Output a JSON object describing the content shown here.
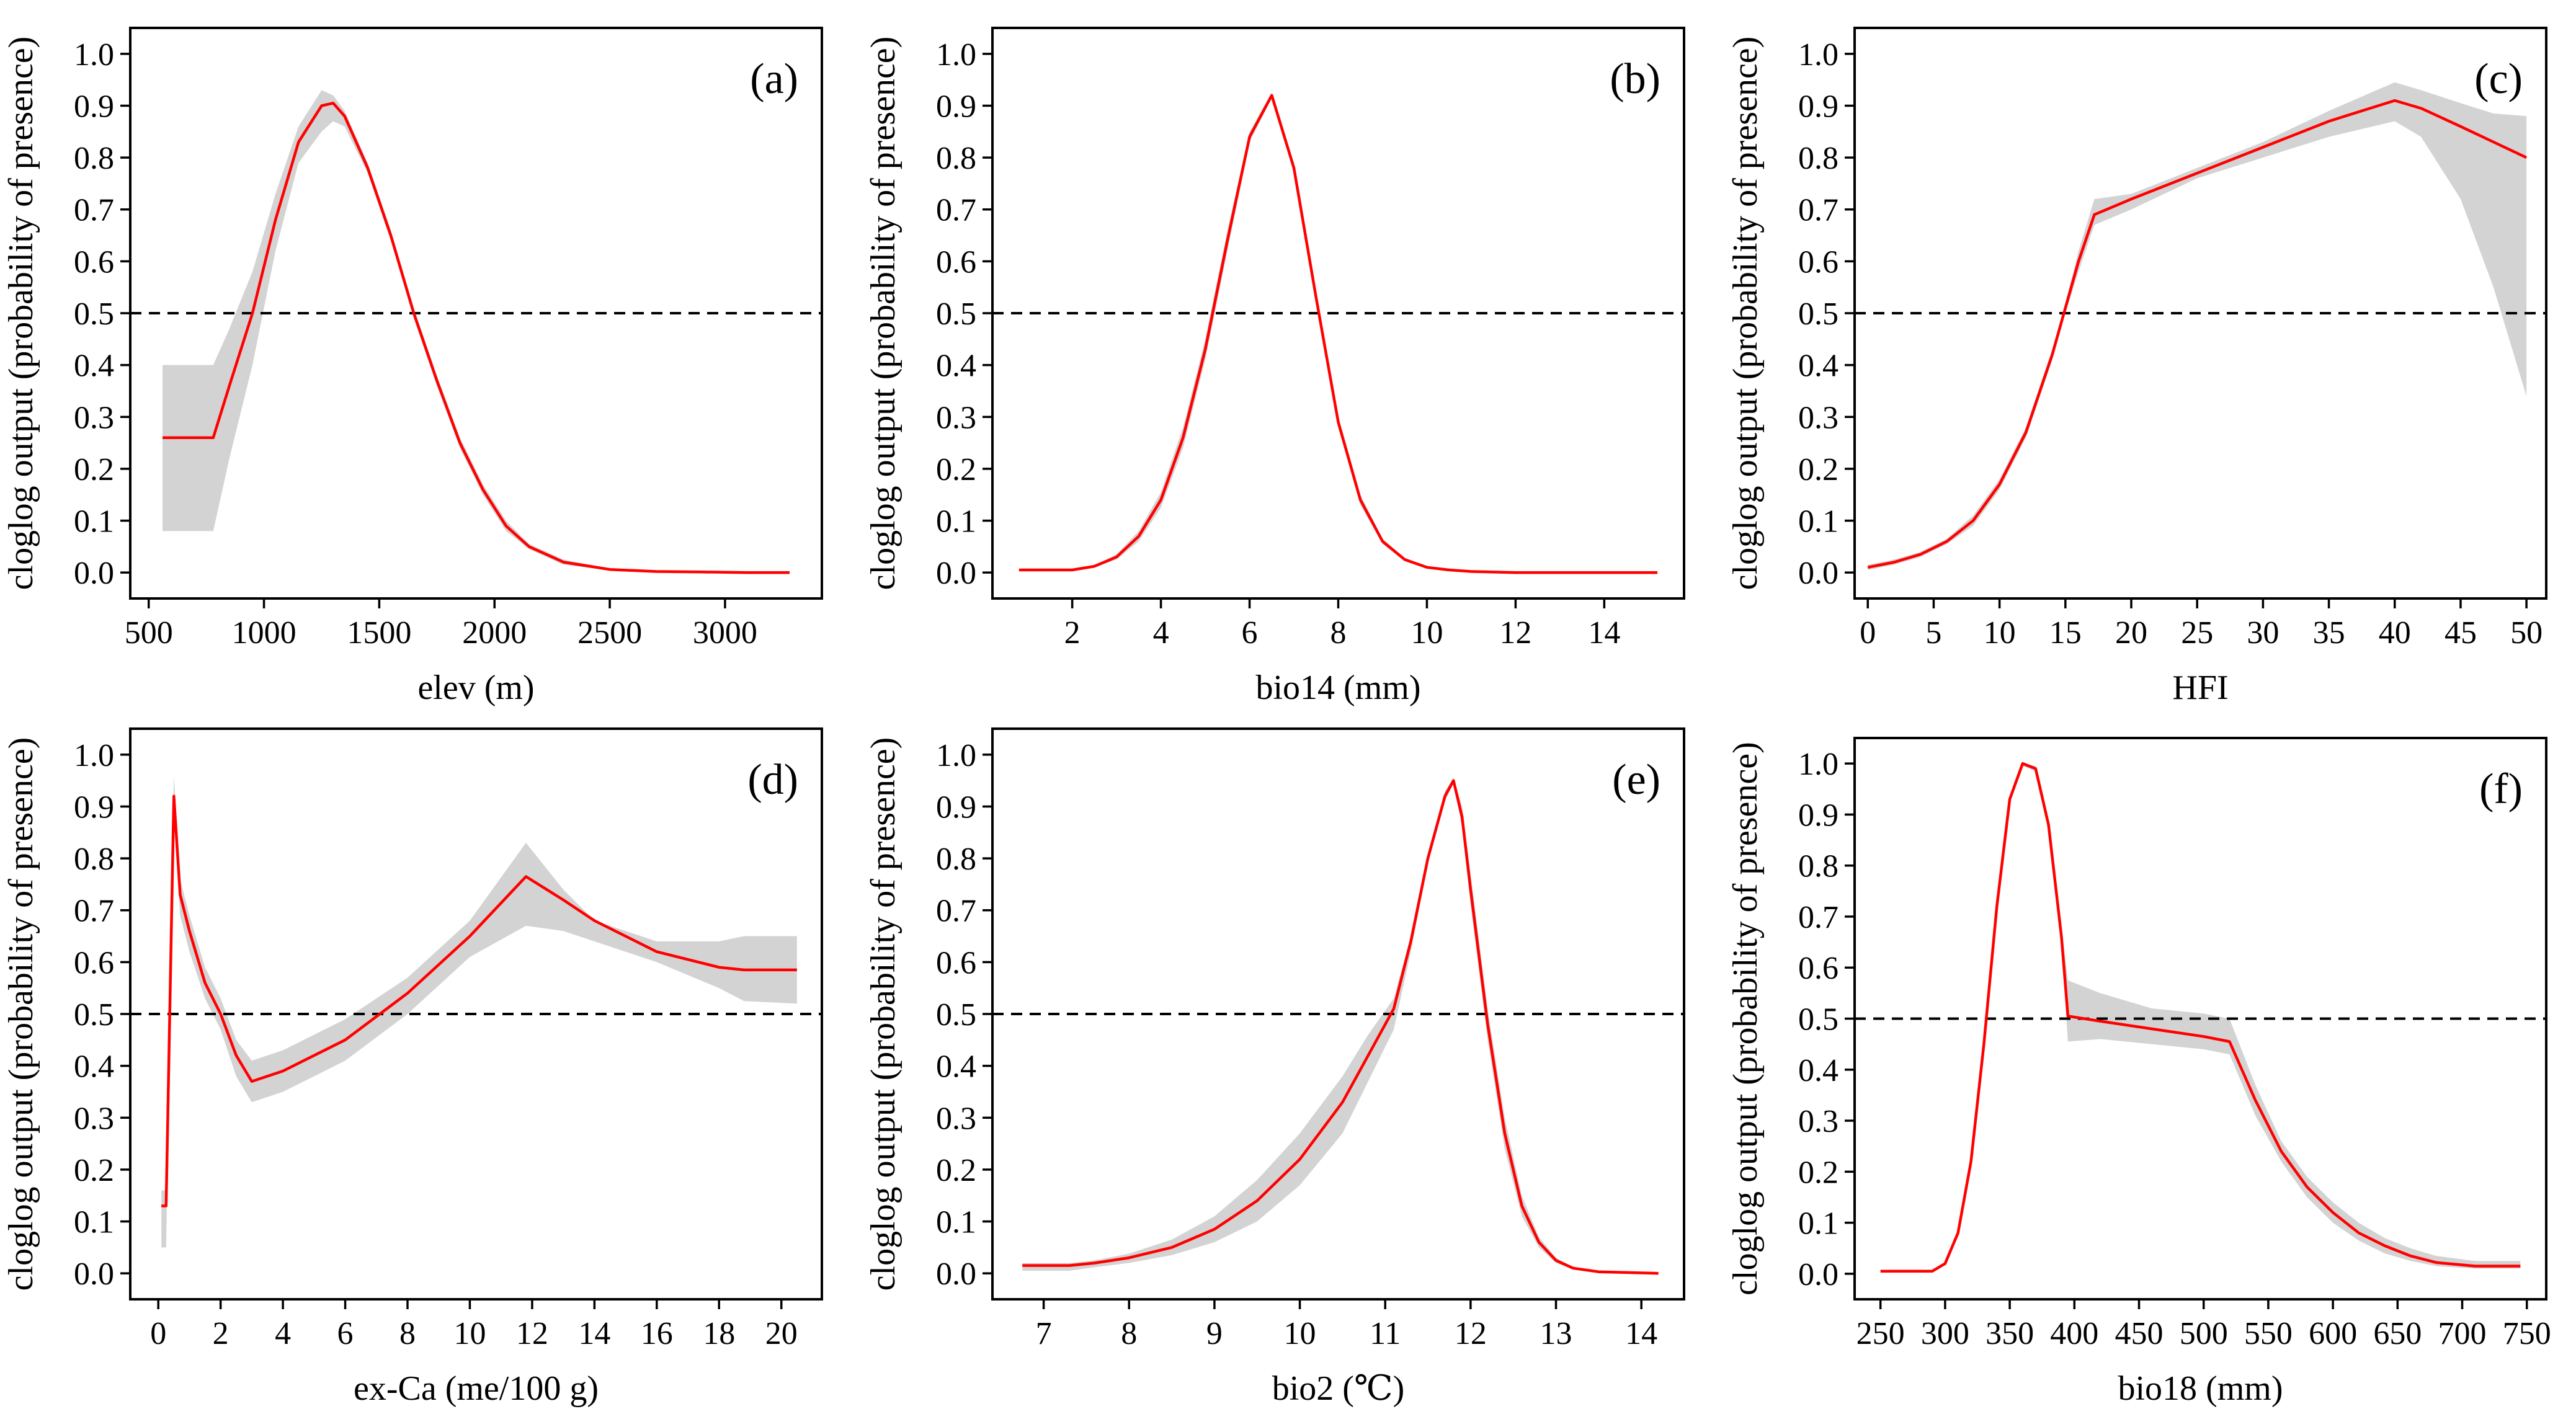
{
  "figure": {
    "ylabel": "cloglog output (probability of presence)",
    "threshold": 0.5,
    "colors": {
      "line": "#ff0000",
      "band": "#d3d3d3",
      "axis": "#000000"
    }
  },
  "chart_data": [
    {
      "type": "line",
      "panel_label": "(a)",
      "xlabel": "elev (m)",
      "ylabel": "cloglog output (probability of presence)",
      "xlim": [
        420,
        3420
      ],
      "ylim": [
        -0.05,
        1.05
      ],
      "xticks": [
        500,
        1000,
        1500,
        2000,
        2500,
        3000
      ],
      "yticks": [
        0.0,
        0.1,
        0.2,
        0.3,
        0.4,
        0.5,
        0.6,
        0.7,
        0.8,
        0.9,
        1.0
      ],
      "x": [
        560,
        780,
        850,
        950,
        1050,
        1150,
        1250,
        1300,
        1350,
        1450,
        1550,
        1650,
        1750,
        1850,
        1950,
        2050,
        2150,
        2300,
        2500,
        2700,
        2900,
        3100,
        3280
      ],
      "y": [
        0.26,
        0.26,
        0.36,
        0.5,
        0.68,
        0.83,
        0.9,
        0.905,
        0.88,
        0.78,
        0.65,
        0.5,
        0.37,
        0.25,
        0.16,
        0.09,
        0.05,
        0.02,
        0.006,
        0.002,
        0.001,
        0.0,
        0.0
      ],
      "band_upper": [
        0.4,
        0.4,
        0.47,
        0.58,
        0.73,
        0.86,
        0.93,
        0.92,
        0.89,
        0.79,
        0.66,
        0.51,
        0.38,
        0.26,
        0.17,
        0.1,
        0.055,
        0.025,
        0.008,
        0.003,
        0.001,
        0.0,
        0.0
      ],
      "band_lower": [
        0.08,
        0.08,
        0.22,
        0.4,
        0.62,
        0.79,
        0.85,
        0.87,
        0.86,
        0.77,
        0.64,
        0.49,
        0.36,
        0.24,
        0.15,
        0.08,
        0.045,
        0.015,
        0.004,
        0.001,
        0.0,
        0.0,
        0.0
      ]
    },
    {
      "type": "line",
      "panel_label": "(b)",
      "xlabel": "bio14 (mm)",
      "ylabel": "cloglog output (probability of presence)",
      "xlim": [
        0.2,
        15.8
      ],
      "ylim": [
        -0.05,
        1.05
      ],
      "xticks": [
        2,
        4,
        6,
        8,
        10,
        12,
        14
      ],
      "yticks": [
        0.0,
        0.1,
        0.2,
        0.3,
        0.4,
        0.5,
        0.6,
        0.7,
        0.8,
        0.9,
        1.0
      ],
      "x": [
        0.8,
        2.0,
        2.5,
        3.0,
        3.5,
        4.0,
        4.5,
        5.0,
        5.5,
        6.0,
        6.5,
        7.0,
        7.5,
        8.0,
        8.5,
        9.0,
        9.5,
        10.0,
        10.5,
        11.0,
        12.0,
        13.0,
        15.2
      ],
      "y": [
        0.005,
        0.005,
        0.012,
        0.03,
        0.07,
        0.14,
        0.26,
        0.43,
        0.64,
        0.84,
        0.92,
        0.78,
        0.53,
        0.29,
        0.14,
        0.06,
        0.025,
        0.01,
        0.005,
        0.002,
        0.0,
        0.0,
        0.0
      ],
      "band_upper": [
        0.006,
        0.006,
        0.014,
        0.035,
        0.08,
        0.155,
        0.28,
        0.45,
        0.66,
        0.85,
        0.925,
        0.79,
        0.54,
        0.3,
        0.15,
        0.065,
        0.028,
        0.012,
        0.006,
        0.003,
        0.0,
        0.0,
        0.0
      ],
      "band_lower": [
        0.004,
        0.004,
        0.01,
        0.025,
        0.06,
        0.125,
        0.24,
        0.41,
        0.62,
        0.83,
        0.915,
        0.77,
        0.52,
        0.28,
        0.13,
        0.055,
        0.022,
        0.008,
        0.004,
        0.001,
        0.0,
        0.0,
        0.0
      ]
    },
    {
      "type": "line",
      "panel_label": "(c)",
      "xlabel": "HFI",
      "ylabel": "cloglog output (probability of presence)",
      "xlim": [
        -1,
        51.5
      ],
      "ylim": [
        -0.05,
        1.05
      ],
      "xticks": [
        0,
        5,
        10,
        15,
        20,
        25,
        30,
        35,
        40,
        45,
        50
      ],
      "yticks": [
        0.0,
        0.1,
        0.2,
        0.3,
        0.4,
        0.5,
        0.6,
        0.7,
        0.8,
        0.9,
        1.0
      ],
      "x": [
        0,
        2,
        4,
        6,
        8,
        10,
        12,
        14,
        15,
        16,
        17.2,
        20,
        25,
        30,
        35,
        40,
        42,
        45,
        47.5,
        50
      ],
      "y": [
        0.01,
        0.02,
        0.035,
        0.06,
        0.1,
        0.17,
        0.27,
        0.42,
        0.51,
        0.6,
        0.69,
        0.72,
        0.77,
        0.82,
        0.87,
        0.91,
        0.895,
        0.86,
        0.83,
        0.8
      ],
      "band_upper": [
        0.015,
        0.025,
        0.04,
        0.065,
        0.11,
        0.18,
        0.28,
        0.43,
        0.52,
        0.62,
        0.72,
        0.73,
        0.78,
        0.83,
        0.89,
        0.945,
        0.93,
        0.905,
        0.885,
        0.88
      ],
      "band_lower": [
        0.005,
        0.015,
        0.03,
        0.055,
        0.09,
        0.16,
        0.26,
        0.41,
        0.5,
        0.58,
        0.67,
        0.7,
        0.76,
        0.8,
        0.84,
        0.87,
        0.84,
        0.72,
        0.55,
        0.34
      ]
    },
    {
      "type": "line",
      "panel_label": "(d)",
      "xlabel": "ex-Ca (me/100 g)",
      "ylabel": "cloglog output (probability of presence)",
      "xlim": [
        -0.9,
        21.3
      ],
      "ylim": [
        -0.05,
        1.05
      ],
      "xticks": [
        0,
        2,
        4,
        6,
        8,
        10,
        12,
        14,
        16,
        18,
        20
      ],
      "yticks": [
        0.0,
        0.1,
        0.2,
        0.3,
        0.4,
        0.5,
        0.6,
        0.7,
        0.8,
        0.9,
        1.0
      ],
      "x": [
        0.1,
        0.25,
        0.5,
        0.7,
        1.0,
        1.5,
        2.0,
        2.5,
        3.0,
        4.0,
        6.0,
        8.0,
        10.0,
        11.8,
        13.0,
        14.0,
        16.0,
        18.0,
        18.8,
        20.5
      ],
      "y": [
        0.13,
        0.13,
        0.92,
        0.73,
        0.66,
        0.56,
        0.5,
        0.42,
        0.37,
        0.39,
        0.45,
        0.54,
        0.65,
        0.765,
        0.72,
        0.68,
        0.62,
        0.59,
        0.585,
        0.585
      ],
      "band_upper": [
        0.16,
        0.16,
        0.96,
        0.76,
        0.69,
        0.59,
        0.53,
        0.45,
        0.41,
        0.43,
        0.49,
        0.57,
        0.68,
        0.83,
        0.74,
        0.68,
        0.64,
        0.64,
        0.65,
        0.65
      ],
      "band_lower": [
        0.05,
        0.05,
        0.88,
        0.69,
        0.62,
        0.53,
        0.47,
        0.38,
        0.33,
        0.35,
        0.41,
        0.5,
        0.61,
        0.67,
        0.66,
        0.64,
        0.6,
        0.55,
        0.525,
        0.52
      ]
    },
    {
      "type": "line",
      "panel_label": "(e)",
      "xlabel": "bio2 (℃)",
      "ylabel": "cloglog output (probability of presence)",
      "xlim": [
        6.4,
        14.5
      ],
      "ylim": [
        -0.05,
        1.05
      ],
      "xticks": [
        7,
        8,
        9,
        10,
        11,
        12,
        13,
        14
      ],
      "yticks": [
        0.0,
        0.1,
        0.2,
        0.3,
        0.4,
        0.5,
        0.6,
        0.7,
        0.8,
        0.9,
        1.0
      ],
      "x": [
        6.75,
        7.3,
        7.6,
        8.0,
        8.5,
        9.0,
        9.5,
        10.0,
        10.5,
        10.8,
        11.1,
        11.3,
        11.5,
        11.7,
        11.8,
        11.9,
        12.0,
        12.2,
        12.4,
        12.6,
        12.8,
        13.0,
        13.2,
        13.5,
        14.2
      ],
      "y": [
        0.015,
        0.015,
        0.02,
        0.03,
        0.05,
        0.085,
        0.14,
        0.22,
        0.33,
        0.42,
        0.51,
        0.64,
        0.8,
        0.92,
        0.95,
        0.88,
        0.74,
        0.48,
        0.27,
        0.13,
        0.06,
        0.025,
        0.01,
        0.003,
        0.0
      ],
      "band_upper": [
        0.02,
        0.02,
        0.025,
        0.038,
        0.065,
        0.11,
        0.18,
        0.27,
        0.38,
        0.46,
        0.53,
        0.65,
        0.81,
        0.93,
        0.955,
        0.9,
        0.77,
        0.51,
        0.3,
        0.15,
        0.07,
        0.03,
        0.012,
        0.004,
        0.001
      ],
      "band_lower": [
        0.005,
        0.005,
        0.012,
        0.02,
        0.035,
        0.06,
        0.1,
        0.17,
        0.27,
        0.37,
        0.47,
        0.62,
        0.79,
        0.91,
        0.945,
        0.86,
        0.71,
        0.45,
        0.24,
        0.11,
        0.05,
        0.02,
        0.008,
        0.002,
        0.0
      ]
    },
    {
      "type": "line",
      "panel_label": "(f)",
      "xlabel": "bio18 (mm)",
      "ylabel": "cloglog output (probability of presence)",
      "xlim": [
        230,
        765
      ],
      "ylim": [
        -0.05,
        1.05
      ],
      "xticks": [
        250,
        300,
        350,
        400,
        450,
        500,
        550,
        600,
        650,
        700,
        750
      ],
      "yticks": [
        0.0,
        0.1,
        0.2,
        0.3,
        0.4,
        0.5,
        0.6,
        0.7,
        0.8,
        0.9,
        1.0
      ],
      "x": [
        250,
        290,
        300,
        310,
        320,
        330,
        340,
        350,
        360,
        370,
        380,
        390,
        395,
        420,
        460,
        500,
        520,
        540,
        560,
        580,
        600,
        620,
        640,
        660,
        680,
        710,
        745
      ],
      "y": [
        0.005,
        0.005,
        0.02,
        0.08,
        0.22,
        0.45,
        0.72,
        0.93,
        1.0,
        0.99,
        0.88,
        0.66,
        0.505,
        0.495,
        0.48,
        0.465,
        0.455,
        0.34,
        0.24,
        0.17,
        0.12,
        0.08,
        0.055,
        0.035,
        0.022,
        0.015,
        0.015
      ],
      "band_upper": [
        0.006,
        0.006,
        0.022,
        0.085,
        0.23,
        0.46,
        0.73,
        0.935,
        1.0,
        0.995,
        0.89,
        0.68,
        0.575,
        0.55,
        0.52,
        0.51,
        0.5,
        0.37,
        0.26,
        0.19,
        0.14,
        0.1,
        0.07,
        0.05,
        0.035,
        0.025,
        0.025
      ],
      "band_lower": [
        0.004,
        0.004,
        0.018,
        0.075,
        0.21,
        0.44,
        0.71,
        0.925,
        0.995,
        0.985,
        0.87,
        0.64,
        0.455,
        0.46,
        0.45,
        0.44,
        0.43,
        0.31,
        0.22,
        0.15,
        0.1,
        0.065,
        0.04,
        0.025,
        0.015,
        0.01,
        0.01
      ]
    }
  ]
}
